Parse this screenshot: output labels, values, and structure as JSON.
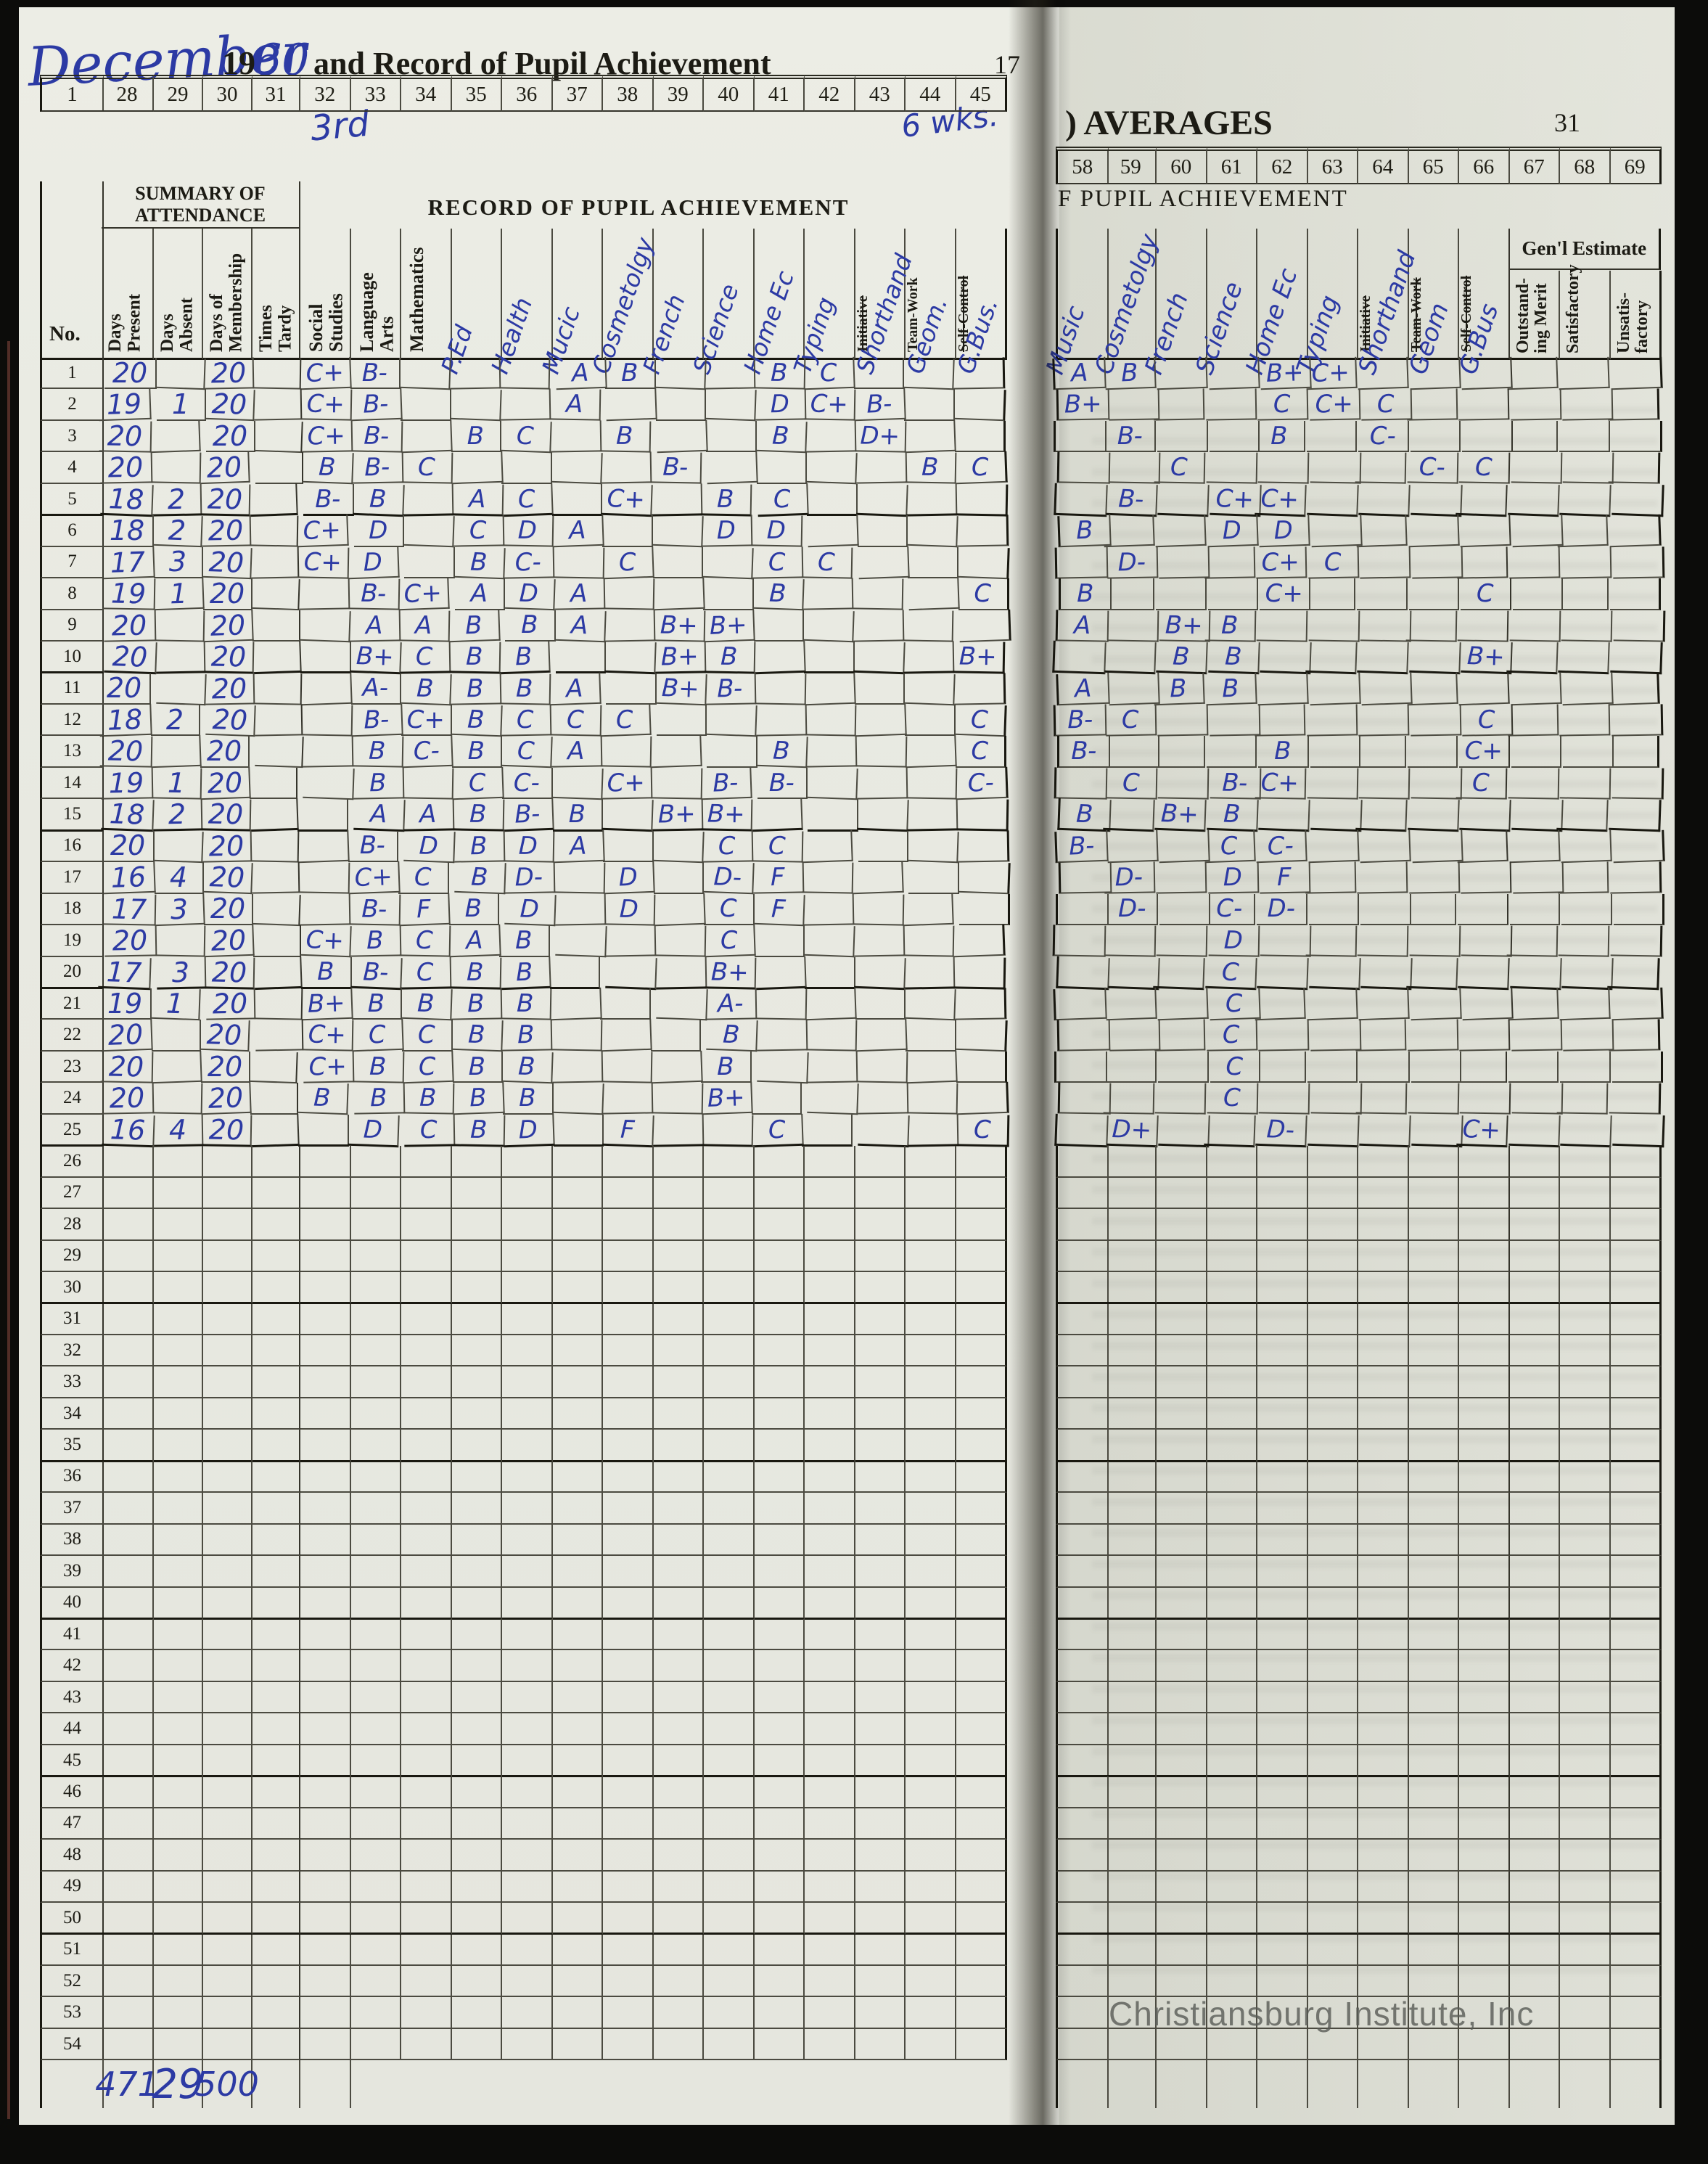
{
  "header": {
    "month": "December",
    "year_printed": "19",
    "year_hand": "60",
    "title": "and Record of Pupil Achievement",
    "left_page_number": "17",
    "right_title": ") AVERAGES",
    "right_page_number": "31",
    "right_subtitle": "F PUPIL ACHIEVEMENT",
    "period_hand": "3rd",
    "record_title": "RECORD OF PUPIL ACHIEVEMENT",
    "weeks_hand": "6 wks.",
    "attendance_title": "SUMMARY OF\nATTENDANCE",
    "no_label": "No."
  },
  "watermark": "Christiansburg Institute, Inc",
  "left_table": {
    "col_numbers": [
      "1",
      "28",
      "29",
      "30",
      "31",
      "32",
      "33",
      "34",
      "35",
      "36",
      "37",
      "38",
      "39",
      "40",
      "41",
      "42",
      "43",
      "44",
      "45"
    ],
    "attendance_headers": [
      "Days\nPresent",
      "Days\nAbsent",
      "Days of\nMembership",
      "Times\nTardy"
    ],
    "subject_headers": [
      {
        "printed": "Social\nStudies"
      },
      {
        "printed": "Language\nArts"
      },
      {
        "printed": "Mathematics"
      },
      {
        "hand": "P.Ed"
      },
      {
        "hand": "Health"
      },
      {
        "hand": "Mucic"
      },
      {
        "hand": "Cosmetolgy"
      },
      {
        "hand": "French"
      },
      {
        "hand": "Science"
      },
      {
        "hand": "Home Ec"
      },
      {
        "hand": "Typing"
      },
      {
        "printed_struck": "Initiative",
        "hand": "Shorthand"
      },
      {
        "printed": "Team-Work",
        "hand": "Geom."
      },
      {
        "printed_struck": "Self-Control",
        "hand": "G.Bus."
      }
    ],
    "row_numbers": [
      "1",
      "2",
      "3",
      "4",
      "5",
      "6",
      "7",
      "8",
      "9",
      "10",
      "11",
      "12",
      "13",
      "14",
      "15",
      "16",
      "17",
      "18",
      "19",
      "20",
      "21",
      "22",
      "23",
      "24",
      "25",
      "26",
      "27",
      "28",
      "29",
      "30",
      "31",
      "32",
      "33",
      "34",
      "35",
      "36",
      "37",
      "38",
      "39",
      "40",
      "41",
      "42",
      "43",
      "44",
      "45",
      "46",
      "47",
      "48",
      "49",
      "50",
      "51",
      "52",
      "53",
      "54"
    ],
    "rows": [
      {
        "present": "20",
        "absent": "",
        "membership": "20",
        "tardy": "",
        "grades": [
          "C+",
          "B-",
          "",
          "",
          "",
          "A",
          "B",
          "",
          "",
          "B",
          "C",
          "",
          "",
          ""
        ]
      },
      {
        "present": "19",
        "absent": "1",
        "membership": "20",
        "tardy": "",
        "grades": [
          "C+",
          "B-",
          "",
          "",
          "",
          "A",
          "",
          "",
          "",
          "D",
          "C+",
          "B-",
          "",
          ""
        ]
      },
      {
        "present": "20",
        "absent": "",
        "membership": "20",
        "tardy": "",
        "grades": [
          "C+",
          "B-",
          "",
          "B",
          "C",
          "",
          "B",
          "",
          "",
          "B",
          "",
          "D+",
          "",
          ""
        ]
      },
      {
        "present": "20",
        "absent": "",
        "membership": "20",
        "tardy": "",
        "grades": [
          "B",
          "B-",
          "C",
          "",
          "",
          "",
          "",
          "B-",
          "",
          "",
          "",
          "",
          "B",
          "C"
        ]
      },
      {
        "present": "18",
        "absent": "2",
        "membership": "20",
        "tardy": "",
        "grades": [
          "B-",
          "B",
          "",
          "A",
          "C",
          "",
          "C+",
          "",
          "B",
          "C",
          "",
          "",
          "",
          ""
        ]
      },
      {
        "present": "18",
        "absent": "2",
        "membership": "20",
        "tardy": "",
        "grades": [
          "C+",
          "D",
          "",
          "C",
          "D",
          "A",
          "",
          "",
          "D",
          "D",
          "",
          "",
          "",
          ""
        ]
      },
      {
        "present": "17",
        "absent": "3",
        "membership": "20",
        "tardy": "",
        "grades": [
          "C+",
          "D",
          "",
          "B",
          "C-",
          "",
          "C",
          "",
          "",
          "C",
          "C",
          "",
          "",
          ""
        ]
      },
      {
        "present": "19",
        "absent": "1",
        "membership": "20",
        "tardy": "",
        "grades": [
          "",
          "B-",
          "C+",
          "A",
          "D",
          "A",
          "",
          "",
          "",
          "B",
          "",
          "",
          "",
          "C"
        ]
      },
      {
        "present": "20",
        "absent": "",
        "membership": "20",
        "tardy": "",
        "grades": [
          "",
          "A",
          "A",
          "B",
          "B",
          "A",
          "",
          "B+",
          "B+",
          "",
          "",
          "",
          "",
          ""
        ]
      },
      {
        "present": "20",
        "absent": "",
        "membership": "20",
        "tardy": "",
        "grades": [
          "",
          "B+",
          "C",
          "B",
          "B",
          "",
          "",
          "B+",
          "B",
          "",
          "",
          "",
          "",
          "B+"
        ]
      },
      {
        "present": "20",
        "absent": "",
        "membership": "20",
        "tardy": "",
        "grades": [
          "",
          "A-",
          "B",
          "B",
          "B",
          "A",
          "",
          "B+",
          "B-",
          "",
          "",
          "",
          "",
          ""
        ]
      },
      {
        "present": "18",
        "absent": "2",
        "membership": "20",
        "tardy": "",
        "grades": [
          "",
          "B-",
          "C+",
          "B",
          "C",
          "C",
          "C",
          "",
          "",
          "",
          "",
          "",
          "",
          "C"
        ]
      },
      {
        "present": "20",
        "absent": "",
        "membership": "20",
        "tardy": "",
        "grades": [
          "",
          "B",
          "C-",
          "B",
          "C",
          "A",
          "",
          "",
          "",
          "B",
          "",
          "",
          "",
          "C"
        ]
      },
      {
        "present": "19",
        "absent": "1",
        "membership": "20",
        "tardy": "",
        "grades": [
          "",
          "B",
          "",
          "C",
          "C-",
          "",
          "C+",
          "",
          "B-",
          "B-",
          "",
          "",
          "",
          "C-"
        ]
      },
      {
        "present": "18",
        "absent": "2",
        "membership": "20",
        "tardy": "",
        "grades": [
          "",
          "A",
          "A",
          "B",
          "B-",
          "B",
          "",
          "B+",
          "B+",
          "",
          "",
          "",
          "",
          ""
        ]
      },
      {
        "present": "20",
        "absent": "",
        "membership": "20",
        "tardy": "",
        "grades": [
          "",
          "B-",
          "D",
          "B",
          "D",
          "A",
          "",
          "",
          "C",
          "C",
          "",
          "",
          "",
          ""
        ]
      },
      {
        "present": "16",
        "absent": "4",
        "membership": "20",
        "tardy": "",
        "grades": [
          "",
          "C+",
          "C",
          "B",
          "D-",
          "",
          "D",
          "",
          "D-",
          "F",
          "",
          "",
          "",
          ""
        ]
      },
      {
        "present": "17",
        "absent": "3",
        "membership": "20",
        "tardy": "",
        "grades": [
          "",
          "B-",
          "F",
          "B",
          "D",
          "",
          "D",
          "",
          "C",
          "F",
          "",
          "",
          "",
          ""
        ]
      },
      {
        "present": "20",
        "absent": "",
        "membership": "20",
        "tardy": "",
        "grades": [
          "C+",
          "B",
          "C",
          "A",
          "B",
          "",
          "",
          "",
          "C",
          "",
          "",
          "",
          "",
          ""
        ]
      },
      {
        "present": "17",
        "absent": "3",
        "membership": "20",
        "tardy": "",
        "grades": [
          "B",
          "B-",
          "C",
          "B",
          "B",
          "",
          "",
          "",
          "B+",
          "",
          "",
          "",
          "",
          ""
        ]
      },
      {
        "present": "19",
        "absent": "1",
        "membership": "20",
        "tardy": "",
        "grades": [
          "B+",
          "B",
          "B",
          "B",
          "B",
          "",
          "",
          "",
          "A-",
          "",
          "",
          "",
          "",
          ""
        ]
      },
      {
        "present": "20",
        "absent": "",
        "membership": "20",
        "tardy": "",
        "grades": [
          "C+",
          "C",
          "C",
          "B",
          "B",
          "",
          "",
          "",
          "B",
          "",
          "",
          "",
          "",
          ""
        ]
      },
      {
        "present": "20",
        "absent": "",
        "membership": "20",
        "tardy": "",
        "grades": [
          "C+",
          "B",
          "C",
          "B",
          "B",
          "",
          "",
          "",
          "B",
          "",
          "",
          "",
          "",
          ""
        ]
      },
      {
        "present": "20",
        "absent": "",
        "membership": "20",
        "tardy": "",
        "grades": [
          "B",
          "B",
          "B",
          "B",
          "B",
          "",
          "",
          "",
          "B+",
          "",
          "",
          "",
          "",
          ""
        ]
      },
      {
        "present": "16",
        "absent": "4",
        "membership": "20",
        "tardy": "",
        "grades": [
          "",
          "D",
          "C",
          "B",
          "D",
          "",
          "F",
          "",
          "",
          "C",
          "",
          "",
          "",
          "C"
        ]
      }
    ],
    "totals": {
      "present": "471",
      "absent": "29",
      "membership": "500"
    }
  },
  "right_table": {
    "col_numbers": [
      "58",
      "59",
      "60",
      "61",
      "62",
      "63",
      "64",
      "65",
      "66",
      "67",
      "68",
      "69"
    ],
    "subject_headers": [
      {
        "hand": "Music"
      },
      {
        "hand": "Cosmetolgy"
      },
      {
        "hand": "French"
      },
      {
        "hand": "Science"
      },
      {
        "hand": "Home Ec"
      },
      {
        "hand": "Typing"
      },
      {
        "printed_struck": "Initiative",
        "hand": "Shorthand"
      },
      {
        "printed_struck": "Team-Work",
        "hand": "Geom"
      },
      {
        "printed_struck": "Self-Control",
        "hand": "G.Bus"
      }
    ],
    "estimate": {
      "title": "Gen'l Estimate",
      "cols": [
        "Outstand-\ning Merit",
        "Satisfactory",
        "Unsatis-\nfactory"
      ]
    },
    "rows": [
      {
        "grades": [
          "A",
          "B",
          "",
          "",
          "B+",
          "C+",
          "",
          "",
          "",
          "",
          "",
          ""
        ]
      },
      {
        "grades": [
          "B+",
          "",
          "",
          "",
          "C",
          "C+",
          "C",
          "",
          "",
          "",
          "",
          ""
        ]
      },
      {
        "grades": [
          "",
          "B-",
          "",
          "",
          "B",
          "",
          "C-",
          "",
          "",
          "",
          "",
          ""
        ]
      },
      {
        "grades": [
          "",
          "",
          "C",
          "",
          "",
          "",
          "",
          "C-",
          "C",
          "",
          "",
          ""
        ]
      },
      {
        "grades": [
          "",
          "B-",
          "",
          "C+",
          "C+",
          "",
          "",
          "",
          "",
          "",
          "",
          ""
        ]
      },
      {
        "grades": [
          "B",
          "",
          "",
          "D",
          "D",
          "",
          "",
          "",
          "",
          "",
          "",
          ""
        ]
      },
      {
        "grades": [
          "",
          "D-",
          "",
          "",
          "C+",
          "C",
          "",
          "",
          "",
          "",
          "",
          ""
        ]
      },
      {
        "grades": [
          "B",
          "",
          "",
          "",
          "C+",
          "",
          "",
          "",
          "C",
          "",
          "",
          ""
        ]
      },
      {
        "grades": [
          "A",
          "",
          "B+",
          "B",
          "",
          "",
          "",
          "",
          "",
          "",
          "",
          ""
        ]
      },
      {
        "grades": [
          "",
          "",
          "B",
          "B",
          "",
          "",
          "",
          "",
          "B+",
          "",
          "",
          ""
        ]
      },
      {
        "grades": [
          "A",
          "",
          "B",
          "B",
          "",
          "",
          "",
          "",
          "",
          "",
          "",
          ""
        ]
      },
      {
        "grades": [
          "B-",
          "C",
          "",
          "",
          "",
          "",
          "",
          "",
          "C",
          "",
          "",
          ""
        ]
      },
      {
        "grades": [
          "B-",
          "",
          "",
          "",
          "B",
          "",
          "",
          "",
          "C+",
          "",
          "",
          ""
        ]
      },
      {
        "grades": [
          "",
          "C",
          "",
          "B-",
          "C+",
          "",
          "",
          "",
          "C",
          "",
          "",
          ""
        ]
      },
      {
        "grades": [
          "B",
          "",
          "B+",
          "B",
          "",
          "",
          "",
          "",
          "",
          "",
          "",
          ""
        ]
      },
      {
        "grades": [
          "B-",
          "",
          "",
          "C",
          "C-",
          "",
          "",
          "",
          "",
          "",
          "",
          ""
        ]
      },
      {
        "grades": [
          "",
          "D-",
          "",
          "D",
          "F",
          "",
          "",
          "",
          "",
          "",
          "",
          ""
        ]
      },
      {
        "grades": [
          "",
          "D-",
          "",
          "C-",
          "D-",
          "",
          "",
          "",
          "",
          "",
          "",
          ""
        ]
      },
      {
        "grades": [
          "",
          "",
          "",
          "D",
          "",
          "",
          "",
          "",
          "",
          "",
          "",
          ""
        ]
      },
      {
        "grades": [
          "",
          "",
          "",
          "C",
          "",
          "",
          "",
          "",
          "",
          "",
          "",
          ""
        ]
      },
      {
        "grades": [
          "",
          "",
          "",
          "C",
          "",
          "",
          "",
          "",
          "",
          "",
          "",
          ""
        ]
      },
      {
        "grades": [
          "",
          "",
          "",
          "C",
          "",
          "",
          "",
          "",
          "",
          "",
          "",
          ""
        ]
      },
      {
        "grades": [
          "",
          "",
          "",
          "C",
          "",
          "",
          "",
          "",
          "",
          "",
          "",
          ""
        ]
      },
      {
        "grades": [
          "",
          "",
          "",
          "C",
          "",
          "",
          "",
          "",
          "",
          "",
          "",
          ""
        ]
      },
      {
        "grades": [
          "",
          "D+",
          "",
          "",
          "D-",
          "",
          "",
          "",
          "C+",
          "",
          "",
          ""
        ]
      }
    ]
  }
}
